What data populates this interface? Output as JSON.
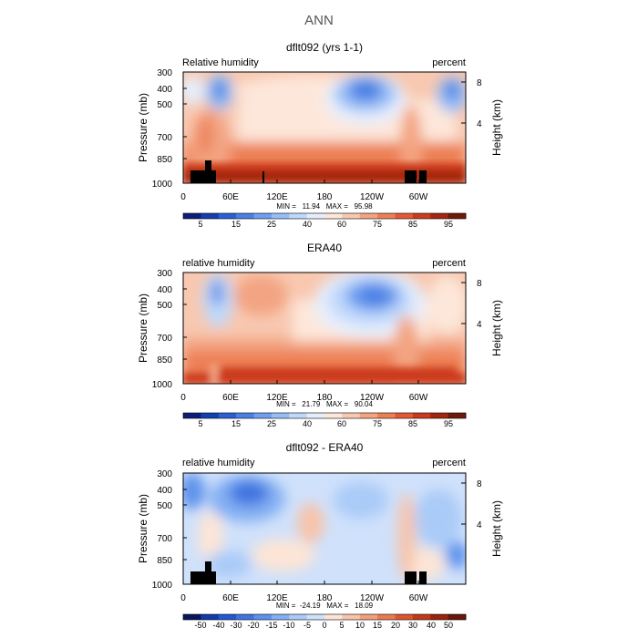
{
  "page": {
    "title": "ANN"
  },
  "colors": {
    "hum_palette": [
      "#0a1f7a",
      "#143fae",
      "#2a60d6",
      "#4a7fe3",
      "#6f9ff0",
      "#97bdf7",
      "#c0d8fb",
      "#e6eefc",
      "#fde7da",
      "#f8c8b0",
      "#f3a482",
      "#ec7f55",
      "#e25a34",
      "#cc3a1c",
      "#a52510",
      "#6e1a0a"
    ],
    "diff_palette": [
      "#08185e",
      "#123aa8",
      "#2457d1",
      "#3f74e0",
      "#5d92ec",
      "#84b0f3",
      "#aacbf8",
      "#cfe1fb",
      "#fde5d6",
      "#f8c4aa",
      "#f1a07b",
      "#e87a50",
      "#dc552e",
      "#c43818",
      "#9a230e",
      "#681708"
    ],
    "topography": "#000000"
  },
  "chart_data": [
    {
      "type": "heatmap",
      "title": "dflt092 (yrs 1-1)",
      "left_label": "Relative humidity",
      "right_label": "percent",
      "ylabel": "Pressure (mb)",
      "y2label": "Height (km)",
      "x_ticks": [
        "0",
        "60E",
        "120E",
        "180",
        "120W",
        "60W"
      ],
      "y_ticks": [
        "300",
        "400",
        "500",
        "700",
        "850",
        "1000"
      ],
      "y2_ticks": [
        "8",
        "4"
      ],
      "stats": "MIN =   11.94   MAX =   95.98",
      "colorbar_labels": [
        "5",
        "15",
        "25",
        "40",
        "60",
        "75",
        "85",
        "95"
      ],
      "color_levels": [
        0,
        5,
        10,
        15,
        20,
        25,
        30,
        40,
        50,
        60,
        70,
        75,
        80,
        85,
        90,
        95
      ],
      "min": 11.94,
      "max": 95.98
    },
    {
      "type": "heatmap",
      "title": "ERA40",
      "left_label": "relative humidity",
      "right_label": "percent",
      "ylabel": "Pressure (mb)",
      "y2label": "Height (km)",
      "x_ticks": [
        "0",
        "60E",
        "120E",
        "180",
        "120W",
        "60W"
      ],
      "y_ticks": [
        "300",
        "400",
        "500",
        "700",
        "850",
        "1000"
      ],
      "y2_ticks": [
        "8",
        "4"
      ],
      "stats": "MIN =   21.79   MAX =   90.04",
      "colorbar_labels": [
        "5",
        "15",
        "25",
        "40",
        "60",
        "75",
        "85",
        "95"
      ],
      "color_levels": [
        0,
        5,
        10,
        15,
        20,
        25,
        30,
        40,
        50,
        60,
        70,
        75,
        80,
        85,
        90,
        95
      ],
      "min": 21.79,
      "max": 90.04
    },
    {
      "type": "heatmap",
      "title": "dflt092 - ERA40",
      "left_label": "relative humidity",
      "right_label": "percent",
      "ylabel": "Pressure (mb)",
      "y2label": "Height (km)",
      "x_ticks": [
        "0",
        "60E",
        "120E",
        "180",
        "120W",
        "60W"
      ],
      "y_ticks": [
        "300",
        "400",
        "500",
        "700",
        "850",
        "1000"
      ],
      "y2_ticks": [
        "8",
        "4"
      ],
      "stats": "MIN =  -24.19   MAX =   18.09",
      "colorbar_labels": [
        "-50",
        "-40",
        "-30",
        "-20",
        "-15",
        "-10",
        "-5",
        "0",
        "5",
        "10",
        "15",
        "20",
        "30",
        "40",
        "50"
      ],
      "color_levels": [
        -60,
        -50,
        -40,
        -30,
        -20,
        -15,
        -10,
        -5,
        0,
        5,
        10,
        15,
        20,
        30,
        40,
        50
      ],
      "min": -24.19,
      "max": 18.09
    }
  ]
}
